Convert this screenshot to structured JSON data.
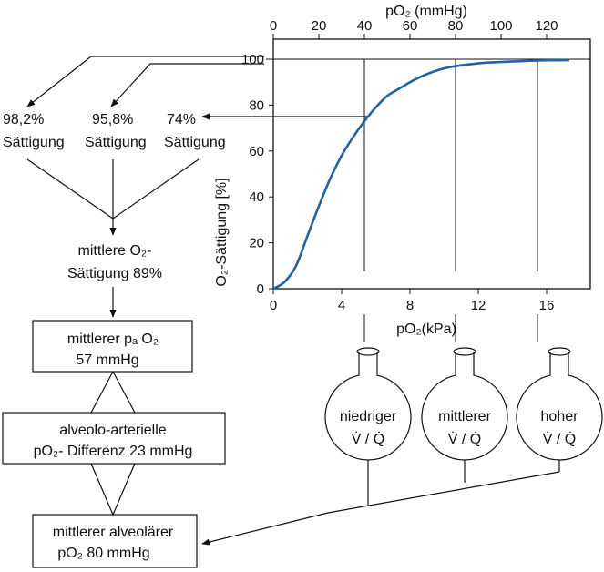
{
  "chart_data": {
    "type": "line",
    "x_top_label": "pO₂ (mmHg)",
    "x_bottom_label": "pO₂(kPa)",
    "y_label": "O₂-Sättigung [%]",
    "x_top_ticks": [
      "0",
      "20",
      "40",
      "60",
      "80",
      "100",
      "120"
    ],
    "x_bottom_ticks": [
      "0",
      "4",
      "8",
      "12",
      "16"
    ],
    "y_ticks": [
      "0",
      "20",
      "40",
      "60",
      "80",
      "100"
    ],
    "xlim_mmhg": [
      0,
      130
    ],
    "ylim": [
      0,
      100
    ],
    "series": [
      {
        "x": [
          0,
          5,
          10,
          15,
          20,
          25,
          30,
          35,
          40,
          45,
          50,
          55,
          60,
          65,
          70,
          75,
          80,
          90,
          100,
          110,
          120,
          130
        ],
        "y": [
          0,
          3,
          10,
          23,
          36,
          48,
          58,
          66,
          73,
          79,
          84,
          87,
          90,
          92.5,
          94.5,
          96,
          97,
          98.2,
          98.8,
          99.2,
          99.5,
          99.6
        ]
      }
    ],
    "markers_mmhg": [
      40,
      80,
      116
    ]
  },
  "saturations": {
    "high": {
      "value": "98,2%",
      "label": "Sättigung"
    },
    "mid": {
      "value": "95,8%",
      "label": "Sättigung"
    },
    "low": {
      "value": "74%",
      "label": "Sättigung"
    }
  },
  "mean_saturation": {
    "line1": "mittlere O₂-",
    "line2": "Sättigung 89%"
  },
  "box_arterial": {
    "line1": "mittlerer pₐ O₂",
    "line2": "57 mmHg"
  },
  "box_difference": {
    "line1": "alveolo-arterielle",
    "line2": "pO₂- Differenz   23 mmHg"
  },
  "box_alveolar": {
    "line1": "mittlerer alveolärer",
    "line2": "pO₂   80 mmHg"
  },
  "flasks": [
    {
      "label": "niedriger",
      "ratio": "V̇ / Q̇"
    },
    {
      "label": "mittlerer",
      "ratio": "V̇ / Q̇"
    },
    {
      "label": "hoher",
      "ratio": "V̇ / Q̇"
    }
  ]
}
